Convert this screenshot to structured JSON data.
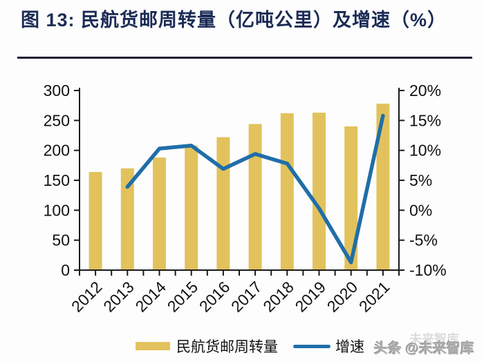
{
  "title": "图 13: 民航货邮周转量（亿吨公里）及增速（%）",
  "legend": {
    "bar_label": "民航货邮周转量",
    "line_label": "增速"
  },
  "watermark": {
    "text": "头条 @未来智库",
    "ghost": "未来智库"
  },
  "colors": {
    "bar": "#e2c25c",
    "line": "#1f6ea9",
    "title": "#1b2b55",
    "rule": "#1a1a33",
    "axis": "#1a1a1a",
    "watermark": "#b0b0b0"
  },
  "chart_data": {
    "type": "bar+line",
    "title": "民航货邮周转量（亿吨公里）及增速（%）",
    "categories": [
      "2012",
      "2013",
      "2014",
      "2015",
      "2016",
      "2017",
      "2018",
      "2019",
      "2020",
      "2021"
    ],
    "series": [
      {
        "name": "民航货邮周转量",
        "type": "bar",
        "axis": "left",
        "values": [
          164,
          170,
          188,
          208,
          222,
          244,
          262,
          263,
          240,
          278
        ]
      },
      {
        "name": "增速",
        "type": "line",
        "axis": "right",
        "values": [
          null,
          3.9,
          10.3,
          10.8,
          6.9,
          9.4,
          7.8,
          0.3,
          -8.7,
          15.8
        ]
      }
    ],
    "left_axis": {
      "min": 0,
      "max": 300,
      "tick_values": [
        0,
        50,
        100,
        150,
        200,
        250,
        300
      ],
      "tick_labels": [
        "0",
        "50",
        "100",
        "150",
        "200",
        "250",
        "300"
      ]
    },
    "right_axis": {
      "min": -10,
      "max": 20,
      "tick_values": [
        -10,
        -5,
        0,
        5,
        10,
        15,
        20
      ],
      "tick_labels": [
        "-10%",
        "-5%",
        "0%",
        "5%",
        "10%",
        "15%",
        "20%"
      ]
    },
    "legend_position": "bottom",
    "grid": false
  }
}
